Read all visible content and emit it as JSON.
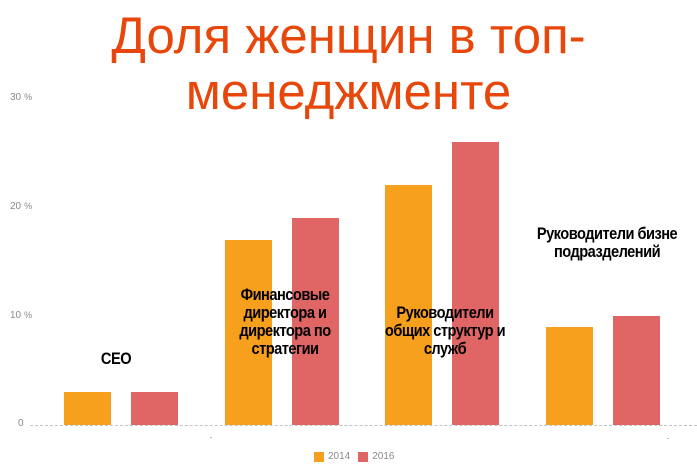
{
  "title": {
    "line1": "Доля женщин в топ-",
    "line2": "менеджменте"
  },
  "colors": {
    "title": "#e8470c",
    "series_2014": "#f7a01e",
    "series_2016": "#e06666",
    "axis_text": "#8a8a8a",
    "gridline": "#c4c4c4"
  },
  "y_axis": {
    "ticks": [
      {
        "value": "30",
        "unit": "%"
      },
      {
        "value": "20",
        "unit": "%"
      },
      {
        "value": "10",
        "unit": "%"
      },
      {
        "value": "0",
        "unit": ""
      }
    ]
  },
  "categories": {
    "ceo": "CEO",
    "fin_l1": "Финансовые",
    "fin_l2": "директора и",
    "fin_l3": "директора по",
    "fin_l4": "стратегии",
    "gen_l1": "Руководители",
    "gen_l2": "общих структур и",
    "gen_l3": "служб",
    "biz_l1": "Руководители бизне",
    "biz_l2": "подразделений"
  },
  "legend": {
    "s2014": "2014",
    "s2016": "2016"
  },
  "chart_data": {
    "type": "bar",
    "title": "Доля женщин в топ-менеджменте",
    "categories": [
      "CEO",
      "Финансовые директора и директора по стратегии",
      "Руководители общих структур и служб",
      "Руководители бизнес-подразделений"
    ],
    "series": [
      {
        "name": "2014",
        "color": "#f7a01e",
        "values": [
          3,
          17,
          22,
          9
        ]
      },
      {
        "name": "2016",
        "color": "#e06666",
        "values": [
          3,
          19,
          26,
          10
        ]
      }
    ],
    "xlabel": "",
    "ylabel": "",
    "yticks": [
      "0",
      "10 %",
      "20 %",
      "30 %"
    ],
    "ylim": [
      0,
      30
    ],
    "grid": false,
    "legend_position": "bottom"
  }
}
